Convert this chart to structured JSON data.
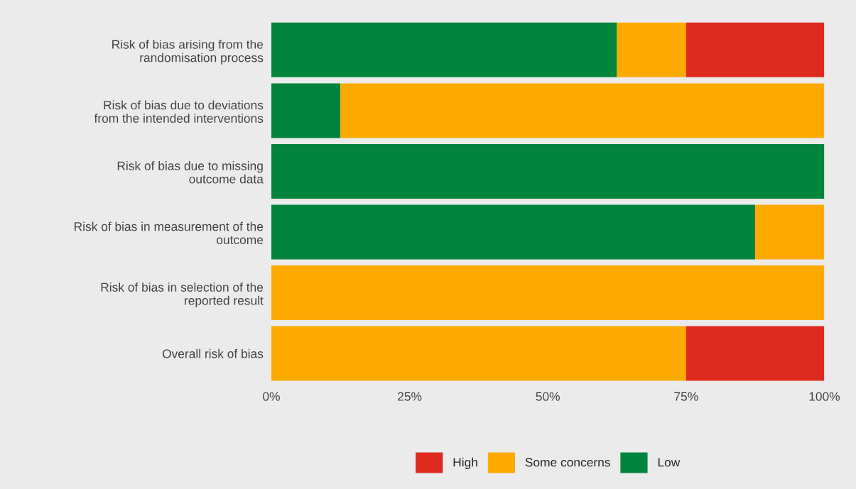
{
  "chart_data": {
    "type": "bar",
    "orientation": "horizontal",
    "stacked": true,
    "categories": [
      "Risk of bias arising from the\nrandomisation process",
      "Risk of bias due to deviations\nfrom the intended interventions",
      "Risk of bias due to missing\noutcome data",
      "Risk of bias in measurement of the\noutcome",
      "Risk of bias in selection of the\nreported result",
      "Overall risk of bias"
    ],
    "series": [
      {
        "name": "Low",
        "color": "#03843d",
        "values": [
          62.5,
          12.5,
          100,
          87.5,
          0,
          0
        ]
      },
      {
        "name": "Some concerns",
        "color": "#fdaa00",
        "values": [
          12.5,
          87.5,
          0,
          12.5,
          100,
          75
        ]
      },
      {
        "name": "High",
        "color": "#dc2b1e",
        "values": [
          25,
          0,
          0,
          0,
          0,
          25
        ]
      }
    ],
    "xlim": [
      0,
      100
    ],
    "xticks": [
      {
        "value": 0,
        "label": "0%"
      },
      {
        "value": 25,
        "label": "25%"
      },
      {
        "value": 50,
        "label": "50%"
      },
      {
        "value": 75,
        "label": "75%"
      },
      {
        "value": 100,
        "label": "100%"
      }
    ],
    "legend": "bottom",
    "grid": false
  }
}
